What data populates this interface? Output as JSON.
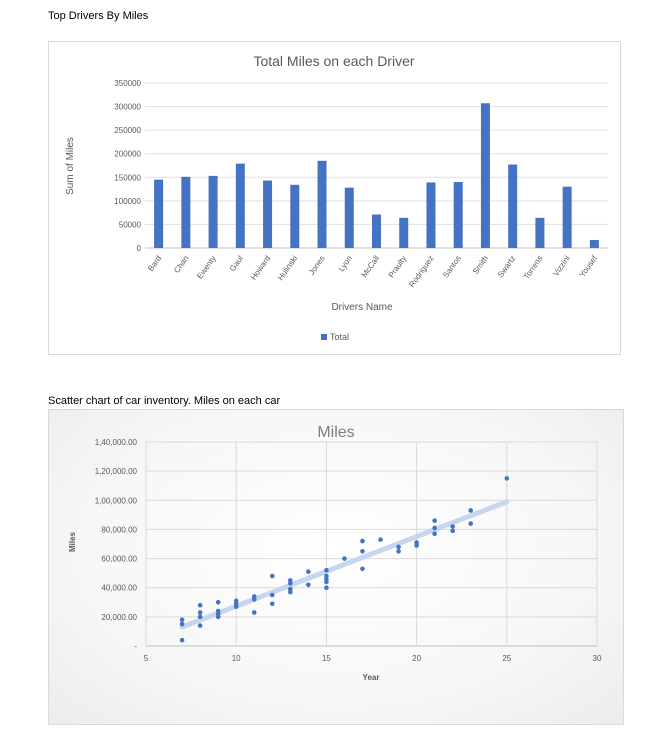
{
  "section1": {
    "caption": "Top Drivers By Miles"
  },
  "section2": {
    "caption": "Scatter chart of car inventory. Miles on each car"
  },
  "chart_data": [
    {
      "type": "bar",
      "title": "Total Miles on each Driver",
      "xlabel": "Drivers Name",
      "ylabel": "Sum of Miles",
      "categories": [
        "Bard",
        "Chan",
        "Ewenty",
        "Gaul",
        "Howard",
        "Hulinski",
        "Jones",
        "Lyon",
        "McCall",
        "Praulty",
        "Rodriguez",
        "Santos",
        "Smith",
        "Swartz",
        "Torrens",
        "Vizzini",
        "Yousef"
      ],
      "series": [
        {
          "name": "Total",
          "values": [
            145000,
            151000,
            153000,
            179000,
            143000,
            134000,
            185000,
            128000,
            71000,
            64000,
            139000,
            140000,
            307000,
            177000,
            64000,
            130000,
            17000
          ]
        }
      ],
      "ylim": [
        0,
        350000
      ],
      "yticks": [
        0,
        50000,
        100000,
        150000,
        200000,
        250000,
        300000,
        350000
      ],
      "ytick_labels": [
        "0",
        "50000",
        "100000",
        "150000",
        "200000",
        "250000",
        "300000",
        "350000"
      ],
      "legend": "bottom",
      "grid": true,
      "color": "#4472c4"
    },
    {
      "type": "scatter",
      "title": "Miles",
      "xlabel": "Year",
      "ylabel": "Miles",
      "xlim": [
        5,
        30
      ],
      "ylim": [
        0,
        140000
      ],
      "xticks": [
        5,
        10,
        15,
        20,
        25,
        30
      ],
      "xtick_labels": [
        "5",
        "10",
        "15",
        "20",
        "25",
        "30"
      ],
      "yticks": [
        0,
        20000,
        40000,
        60000,
        80000,
        100000,
        120000,
        140000
      ],
      "ytick_labels": [
        "-",
        "20,000.00",
        "40,000.00",
        "60,000.00",
        "80,000.00",
        "1,00,000.00",
        "1,20,000.00",
        "1,40,000.00"
      ],
      "grid": true,
      "color": "#4472c4",
      "trendline": {
        "x": [
          7,
          25
        ],
        "y": [
          13000,
          99000
        ],
        "color": "#c5d6ee"
      },
      "points": [
        [
          7,
          4000
        ],
        [
          7,
          15000
        ],
        [
          7,
          18000
        ],
        [
          8,
          14000
        ],
        [
          8,
          20000
        ],
        [
          8,
          23000
        ],
        [
          8,
          28000
        ],
        [
          9,
          20000
        ],
        [
          9,
          22000
        ],
        [
          9,
          24000
        ],
        [
          9,
          30000
        ],
        [
          10,
          27000
        ],
        [
          10,
          29000
        ],
        [
          10,
          31000
        ],
        [
          11,
          23000
        ],
        [
          11,
          32000
        ],
        [
          11,
          34000
        ],
        [
          12,
          29000
        ],
        [
          12,
          35000
        ],
        [
          12,
          48000
        ],
        [
          13,
          37000
        ],
        [
          13,
          39000
        ],
        [
          13,
          43000
        ],
        [
          13,
          45000
        ],
        [
          14,
          42000
        ],
        [
          14,
          51000
        ],
        [
          15,
          40000
        ],
        [
          15,
          44000
        ],
        [
          15,
          46000
        ],
        [
          15,
          48000
        ],
        [
          15,
          52000
        ],
        [
          16,
          60000
        ],
        [
          17,
          53000
        ],
        [
          17,
          65000
        ],
        [
          17,
          72000
        ],
        [
          18,
          73000
        ],
        [
          19,
          65000
        ],
        [
          19,
          68000
        ],
        [
          20,
          69000
        ],
        [
          20,
          71000
        ],
        [
          21,
          77000
        ],
        [
          21,
          81000
        ],
        [
          21,
          86000
        ],
        [
          22,
          79000
        ],
        [
          22,
          82000
        ],
        [
          23,
          84000
        ],
        [
          23,
          93000
        ],
        [
          25,
          115000
        ]
      ]
    }
  ]
}
